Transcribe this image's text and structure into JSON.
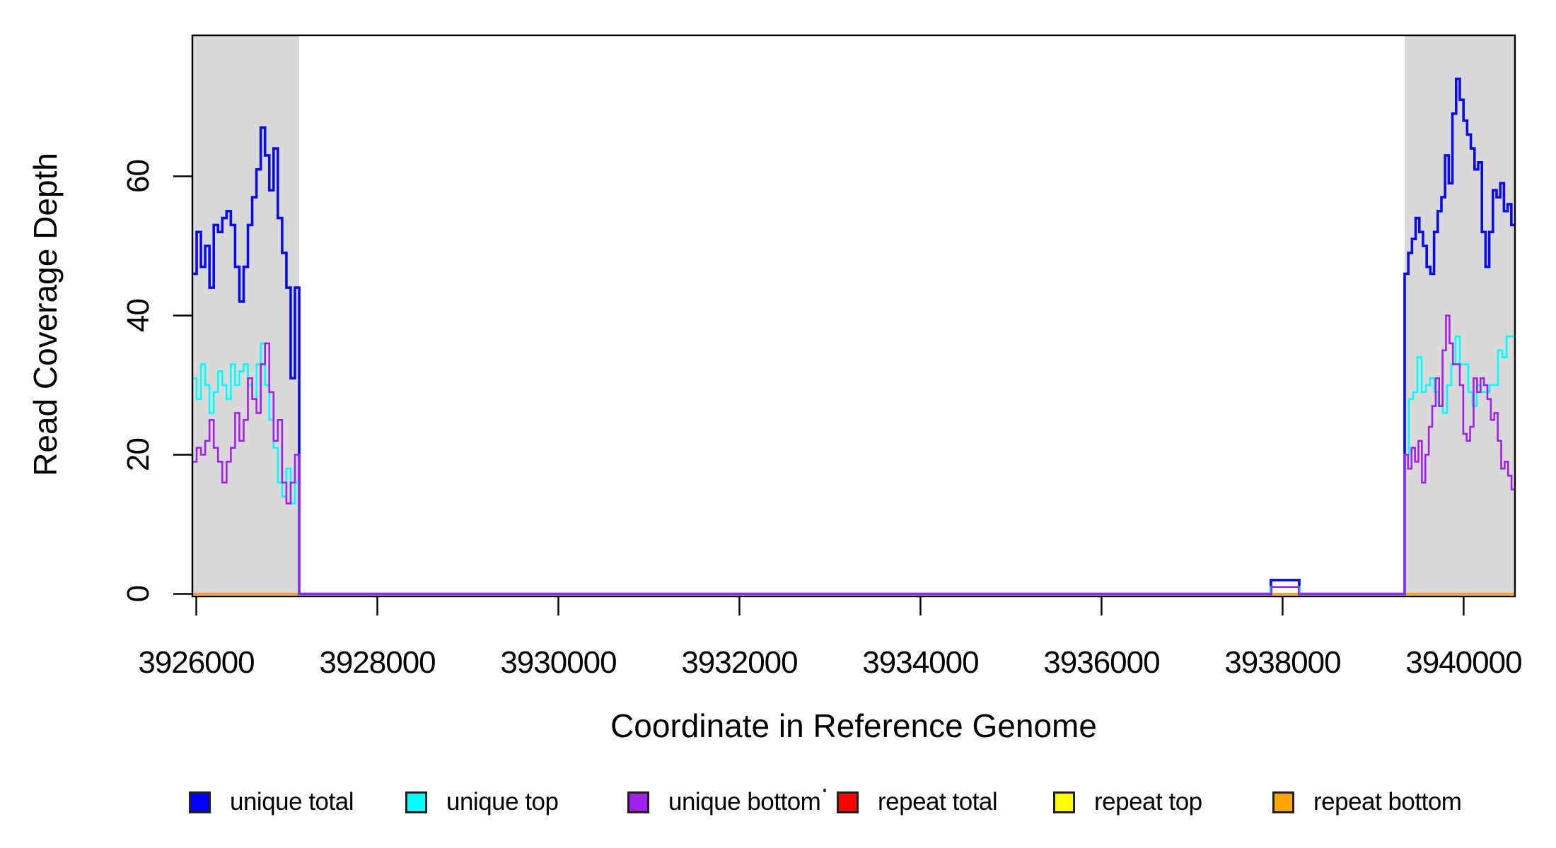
{
  "figure": {
    "xlabel": "Coordinate in Reference Genome",
    "ylabel": "Read Coverage Depth",
    "background_color": "#FFFFFF",
    "masked_region_color": "#D9D9D9",
    "axis_color": "#000000"
  },
  "legend": {
    "items": [
      {
        "label": "unique total",
        "color": "#0000FF"
      },
      {
        "label": "unique top",
        "color": "#00FFFF"
      },
      {
        "label": "unique bottom",
        "color": "#A020F0"
      },
      {
        "label": "repeat total",
        "color": "#FF0000"
      },
      {
        "label": "repeat top",
        "color": "#FFFF00"
      },
      {
        "label": "repeat bottom",
        "color": "#FFA500"
      }
    ]
  },
  "chart_data": {
    "type": "line",
    "subtype": "step-coverage",
    "title": "",
    "xlabel": "Coordinate in Reference Genome",
    "ylabel": "Read Coverage Depth",
    "xlim": [
      3925957,
      3940567
    ],
    "ylim": [
      0,
      80.3
    ],
    "x_ticks": [
      3926000,
      3928000,
      3930000,
      3932000,
      3934000,
      3936000,
      3938000,
      3940000
    ],
    "y_ticks": [
      0,
      20,
      40,
      60
    ],
    "grid": false,
    "legend_position": "bottom",
    "shaded_regions": [
      {
        "name": "left-masked-region",
        "start": 3925957,
        "end": 3927137
      },
      {
        "name": "right-masked-region",
        "start": 3939348,
        "end": 3940567
      }
    ],
    "series": [
      {
        "name": "repeat total",
        "color": "#FF0000",
        "stroke_width": 2.6,
        "segments": [
          {
            "start": 3925957,
            "end": 3940567,
            "values": [
              0
            ]
          }
        ]
      },
      {
        "name": "repeat top",
        "color": "#FFFF00",
        "stroke_width": 2.6,
        "segments": [
          {
            "start": 3925957,
            "end": 3940567,
            "values": [
              0
            ]
          }
        ]
      },
      {
        "name": "repeat bottom",
        "color": "#FFA500",
        "stroke_width": 3.2,
        "segments": [
          {
            "start": 3925957,
            "end": 3940567,
            "values": [
              0
            ]
          }
        ]
      },
      {
        "name": "unique total",
        "color": "#0A0AF0",
        "stroke_width": 3.6,
        "segments": [
          {
            "start": 3925957,
            "end": 3927137,
            "values": [
              46,
              52,
              47,
              50,
              44,
              53,
              52,
              54,
              55,
              53,
              47,
              42,
              47,
              53,
              57,
              61,
              67,
              63,
              58,
              64,
              54,
              49,
              44,
              31,
              44
            ]
          },
          {
            "start": 3937871,
            "end": 3938184,
            "values": [
              2
            ]
          },
          {
            "start": 3939348,
            "end": 3940567,
            "values": [
              46,
              49,
              51,
              54,
              52,
              50,
              47,
              46,
              52,
              55,
              57,
              63,
              59,
              69,
              74,
              71,
              68,
              66,
              64,
              61,
              62,
              52,
              47,
              52,
              58,
              57,
              59,
              55,
              56,
              53
            ]
          }
        ]
      },
      {
        "name": "unique top",
        "color": "#00FFFF",
        "stroke_width": 2.6,
        "segments": [
          {
            "start": 3925957,
            "end": 3927137,
            "values": [
              31,
              28,
              33,
              30,
              26,
              29,
              32,
              30,
              28,
              33,
              30,
              32,
              33,
              30,
              28,
              33,
              36,
              30,
              25,
              21,
              16,
              14,
              18,
              13,
              16
            ]
          },
          {
            "start": 3937864,
            "end": 3938190,
            "values": [
              1
            ]
          },
          {
            "start": 3939348,
            "end": 3940567,
            "values": [
              20,
              28,
              29,
              34,
              29,
              30,
              31,
              29,
              27,
              26,
              30,
              33,
              37,
              33,
              33,
              29,
              27,
              30,
              29,
              29,
              30,
              30,
              35,
              34,
              37,
              37
            ]
          }
        ]
      },
      {
        "name": "unique bottom",
        "color": "#A020F0",
        "stroke_width": 2.6,
        "segments": [
          {
            "start": 3925957,
            "end": 3927137,
            "values": [
              19,
              21,
              20,
              22,
              25,
              21,
              19,
              16,
              19,
              21,
              26,
              22,
              25,
              31,
              28,
              26,
              33,
              36,
              29,
              22,
              25,
              16,
              13,
              16,
              20
            ]
          },
          {
            "start": 3937876,
            "end": 3938178,
            "values": [
              1
            ]
          },
          {
            "start": 3939348,
            "end": 3940567,
            "values": [
              20,
              18,
              21,
              19,
              22,
              16,
              20,
              24,
              27,
              31,
              27,
              35,
              40,
              36,
              33,
              33,
              30,
              23,
              22,
              24,
              31,
              29,
              31,
              30,
              28,
              25,
              26,
              22,
              18,
              19,
              17,
              15
            ]
          }
        ]
      }
    ]
  }
}
